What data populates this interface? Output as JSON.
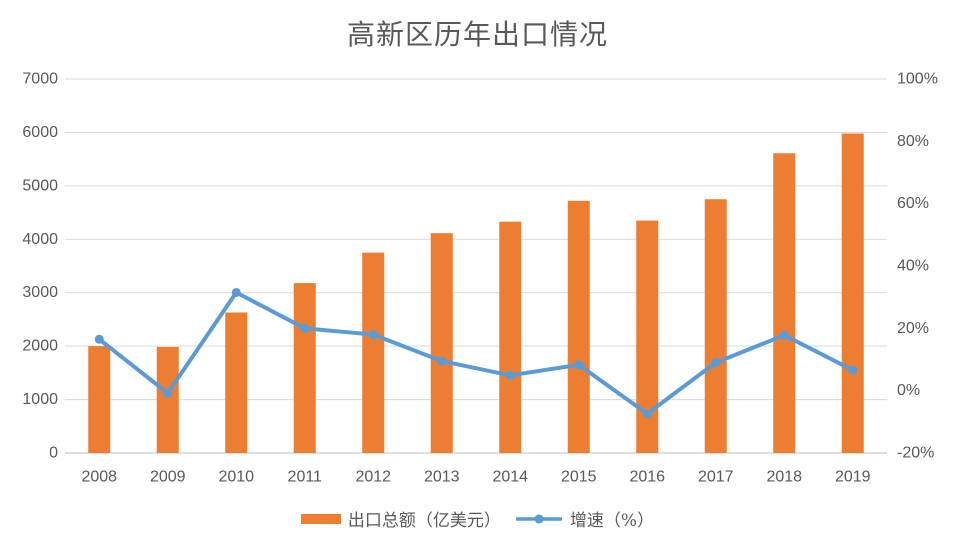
{
  "chart_data": {
    "type": "bar+line",
    "title": "高新区历年出口情况",
    "categories": [
      "2008",
      "2009",
      "2010",
      "2011",
      "2012",
      "2013",
      "2014",
      "2015",
      "2016",
      "2017",
      "2018",
      "2019"
    ],
    "series": [
      {
        "name": "出口总额（亿美元）",
        "type": "bar",
        "axis": "left",
        "color": "#ED7D31",
        "values": [
          2000,
          1985,
          2630,
          3180,
          3750,
          4115,
          4330,
          4720,
          4350,
          4750,
          5610,
          5980
        ]
      },
      {
        "name": "增速（%）",
        "type": "line",
        "axis": "right",
        "color": "#5B9BD5",
        "values": [
          16.5,
          -0.8,
          31.5,
          20,
          18,
          9.5,
          4.9,
          8.3,
          -7.4,
          9,
          17.8,
          6.6
        ]
      }
    ],
    "left_axis": {
      "min": 0,
      "max": 7000,
      "step": 1000,
      "tick_labels": [
        "0",
        "1000",
        "2000",
        "3000",
        "4000",
        "5000",
        "6000",
        "7000"
      ]
    },
    "right_axis": {
      "min": -20,
      "max": 100,
      "step": 20,
      "tick_labels": [
        "-20%",
        "0%",
        "20%",
        "40%",
        "60%",
        "80%",
        "100%"
      ]
    },
    "grid": true,
    "legend_position": "bottom",
    "colors": {
      "text": "#595959",
      "gridline": "#D9D9D9",
      "axis_line": "#BFBFBF",
      "background": "#FFFFFF"
    }
  }
}
